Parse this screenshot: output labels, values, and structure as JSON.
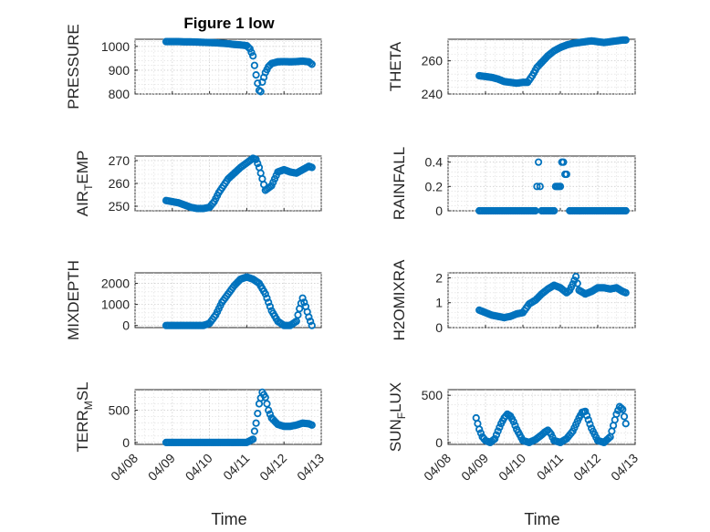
{
  "figure": {
    "title": "Figure 1 low",
    "xlabel": "Time"
  },
  "colors": {
    "marker": "#0072BD",
    "axes": "#262626",
    "background": "#ffffff"
  },
  "chart_data": [
    {
      "id": "pressure",
      "type": "scatter",
      "ylabel": "PRESSURE",
      "x_range": [
        "04/08",
        "04/13"
      ],
      "xticks": [
        "04/08",
        "04/09",
        "04/10",
        "04/11",
        "04/12",
        "04/13"
      ],
      "show_xtick_labels": false,
      "ylim": [
        800,
        1030
      ],
      "yticks": [
        800,
        900,
        1000
      ],
      "grid": true,
      "minor_grid": true,
      "x": [
        "04/08 20:00",
        "04/09 00:00",
        "04/09 04:00",
        "04/09 08:00",
        "04/09 12:00",
        "04/09 16:00",
        "04/09 20:00",
        "04/10 00:00",
        "04/10 04:00",
        "04/10 08:00",
        "04/10 12:00",
        "04/10 16:00",
        "04/10 20:00",
        "04/11 00:00",
        "04/11 02:00",
        "04/11 04:00",
        "04/11 05:00",
        "04/11 06:00",
        "04/11 07:00",
        "04/11 08:00",
        "04/11 09:00",
        "04/11 10:00",
        "04/11 12:00",
        "04/11 14:00",
        "04/11 16:00",
        "04/11 20:00",
        "04/12 00:00",
        "04/12 04:00",
        "04/12 08:00",
        "04/12 12:00",
        "04/12 16:00",
        "04/12 18:00"
      ],
      "y": [
        1020,
        1020,
        1020,
        1019,
        1019,
        1018,
        1017,
        1016,
        1015,
        1013,
        1011,
        1008,
        1006,
        1003,
        990,
        960,
        920,
        880,
        845,
        815,
        810,
        850,
        890,
        915,
        928,
        935,
        936,
        935,
        936,
        938,
        935,
        925
      ]
    },
    {
      "id": "theta",
      "type": "scatter",
      "ylabel": "THETA",
      "x_range": [
        "04/08",
        "04/13"
      ],
      "xticks": [
        "04/08",
        "04/09",
        "04/10",
        "04/11",
        "04/12",
        "04/13"
      ],
      "show_xtick_labels": false,
      "ylim": [
        240,
        273
      ],
      "yticks": [
        240,
        260
      ],
      "grid": true,
      "minor_grid": true,
      "x": [
        "04/08 20:00",
        "04/09 00:00",
        "04/09 04:00",
        "04/09 08:00",
        "04/09 12:00",
        "04/09 16:00",
        "04/09 20:00",
        "04/10 00:00",
        "04/10 03:00",
        "04/10 06:00",
        "04/10 09:00",
        "04/10 12:00",
        "04/10 16:00",
        "04/10 20:00",
        "04/11 00:00",
        "04/11 04:00",
        "04/11 08:00",
        "04/11 12:00",
        "04/11 16:00",
        "04/11 20:00",
        "04/12 00:00",
        "04/12 04:00",
        "04/12 08:00",
        "04/12 12:00",
        "04/12 16:00",
        "04/12 18:00"
      ],
      "y": [
        251,
        250.5,
        250,
        249,
        247.5,
        247,
        246.5,
        247,
        247,
        251,
        256,
        259,
        263,
        266,
        268,
        269.5,
        270.5,
        271,
        271.5,
        272,
        271.5,
        271,
        271.5,
        272,
        272.5,
        272.5
      ]
    },
    {
      "id": "air_temp",
      "type": "scatter",
      "ylabel": "AIR_TEMP",
      "x_range": [
        "04/08",
        "04/13"
      ],
      "xticks": [
        "04/08",
        "04/09",
        "04/10",
        "04/11",
        "04/12",
        "04/13"
      ],
      "show_xtick_labels": false,
      "ylim": [
        248,
        272
      ],
      "yticks": [
        250,
        260,
        270
      ],
      "grid": true,
      "minor_grid": true,
      "x": [
        "04/08 20:00",
        "04/09 00:00",
        "04/09 04:00",
        "04/09 08:00",
        "04/09 12:00",
        "04/09 16:00",
        "04/09 20:00",
        "04/10 00:00",
        "04/10 03:00",
        "04/10 06:00",
        "04/10 09:00",
        "04/10 12:00",
        "04/10 16:00",
        "04/10 20:00",
        "04/11 00:00",
        "04/11 04:00",
        "04/11 06:00",
        "04/11 08:00",
        "04/11 10:00",
        "04/11 12:00",
        "04/11 16:00",
        "04/11 20:00",
        "04/12 00:00",
        "04/12 04:00",
        "04/12 08:00",
        "04/12 12:00",
        "04/12 16:00",
        "04/12 18:00"
      ],
      "y": [
        252.5,
        252,
        251.5,
        250.5,
        249.5,
        249,
        249,
        249.5,
        252,
        256,
        259,
        262,
        264.5,
        267,
        269,
        271,
        270.5,
        267,
        262,
        257,
        259,
        265,
        266,
        265,
        264.5,
        266,
        267.5,
        267
      ]
    },
    {
      "id": "rainfall",
      "type": "scatter",
      "ylabel": "RAINFALL",
      "x_range": [
        "04/08",
        "04/13"
      ],
      "xticks": [
        "04/08",
        "04/09",
        "04/10",
        "04/11",
        "04/12",
        "04/13"
      ],
      "show_xtick_labels": false,
      "ylim": [
        0,
        0.45
      ],
      "yticks": [
        0,
        0.2,
        0.4
      ],
      "grid": true,
      "minor_grid": true,
      "x": [
        "04/08 20:00",
        "04/09 00:00",
        "04/09 04:00",
        "04/09 08:00",
        "04/09 12:00",
        "04/09 16:00",
        "04/09 20:00",
        "04/10 00:00",
        "04/10 04:00",
        "04/10 08:00",
        "04/10 09:00",
        "04/10 10:00",
        "04/10 11:00",
        "04/10 12:00",
        "04/10 16:00",
        "04/10 20:00",
        "04/10 21:00",
        "04/10 22:00",
        "04/10 23:00",
        "04/11 00:00",
        "04/11 01:00",
        "04/11 02:00",
        "04/11 03:00",
        "04/11 04:00",
        "04/11 06:00",
        "04/11 08:00",
        "04/11 12:00",
        "04/11 16:00",
        "04/11 20:00",
        "04/12 00:00",
        "04/12 04:00",
        "04/12 08:00",
        "04/12 12:00",
        "04/12 16:00",
        "04/12 18:00"
      ],
      "y": [
        0,
        0,
        0,
        0,
        0,
        0,
        0,
        0,
        0,
        0,
        0.2,
        0.4,
        0.2,
        0,
        0,
        0,
        0.2,
        0.2,
        0.2,
        0.2,
        0.4,
        0.4,
        0.3,
        0.3,
        0,
        0,
        0,
        0,
        0,
        0,
        0,
        0,
        0,
        0,
        0
      ]
    },
    {
      "id": "mixdepth",
      "type": "scatter",
      "ylabel": "MIXDEPTH",
      "x_range": [
        "04/08",
        "04/13"
      ],
      "xticks": [
        "04/08",
        "04/09",
        "04/10",
        "04/11",
        "04/12",
        "04/13"
      ],
      "show_xtick_labels": false,
      "ylim": [
        -100,
        2500
      ],
      "yticks": [
        0,
        1000,
        2000
      ],
      "grid": true,
      "minor_grid": true,
      "x": [
        "04/08 20:00",
        "04/09 00:00",
        "04/09 04:00",
        "04/09 08:00",
        "04/09 12:00",
        "04/09 16:00",
        "04/09 20:00",
        "04/10 00:00",
        "04/10 04:00",
        "04/10 08:00",
        "04/10 12:00",
        "04/10 16:00",
        "04/10 20:00",
        "04/11 00:00",
        "04/11 04:00",
        "04/11 08:00",
        "04/11 12:00",
        "04/11 16:00",
        "04/11 20:00",
        "04/12 00:00",
        "04/12 04:00",
        "04/12 08:00",
        "04/12 10:00",
        "04/12 12:00",
        "04/12 14:00",
        "04/12 16:00",
        "04/12 18:00"
      ],
      "y": [
        0,
        0,
        0,
        0,
        0,
        0,
        0,
        100,
        500,
        1100,
        1500,
        1900,
        2200,
        2300,
        2200,
        2000,
        1500,
        700,
        200,
        0,
        0,
        200,
        800,
        1300,
        900,
        400,
        0
      ]
    },
    {
      "id": "h2omixra",
      "type": "scatter",
      "ylabel": "H2OMIXRA",
      "x_range": [
        "04/08",
        "04/13"
      ],
      "xticks": [
        "04/08",
        "04/09",
        "04/10",
        "04/11",
        "04/12",
        "04/13"
      ],
      "show_xtick_labels": false,
      "ylim": [
        0,
        2.2
      ],
      "yticks": [
        0,
        1,
        2
      ],
      "grid": true,
      "minor_grid": true,
      "x": [
        "04/08 20:00",
        "04/09 00:00",
        "04/09 04:00",
        "04/09 08:00",
        "04/09 12:00",
        "04/09 16:00",
        "04/09 20:00",
        "04/10 00:00",
        "04/10 04:00",
        "04/10 08:00",
        "04/10 12:00",
        "04/10 16:00",
        "04/10 20:00",
        "04/11 00:00",
        "04/11 04:00",
        "04/11 06:00",
        "04/11 08:00",
        "04/11 10:00",
        "04/11 12:00",
        "04/11 16:00",
        "04/11 20:00",
        "04/12 00:00",
        "04/12 04:00",
        "04/12 08:00",
        "04/12 12:00",
        "04/12 16:00",
        "04/12 18:00"
      ],
      "y": [
        0.7,
        0.6,
        0.5,
        0.45,
        0.4,
        0.45,
        0.55,
        0.6,
        0.95,
        1.1,
        1.35,
        1.55,
        1.7,
        1.6,
        1.4,
        1.5,
        1.75,
        2.05,
        1.5,
        1.35,
        1.45,
        1.6,
        1.6,
        1.55,
        1.6,
        1.45,
        1.4
      ]
    },
    {
      "id": "terr_msl",
      "type": "scatter",
      "ylabel": "TERR_MSL",
      "x_range": [
        "04/08",
        "04/13"
      ],
      "xticks": [
        "04/08",
        "04/09",
        "04/10",
        "04/11",
        "04/12",
        "04/13"
      ],
      "show_xtick_labels": true,
      "ylim": [
        -30,
        820
      ],
      "yticks": [
        0,
        500
      ],
      "grid": true,
      "minor_grid": true,
      "x": [
        "04/08 20:00",
        "04/09 00:00",
        "04/09 04:00",
        "04/09 08:00",
        "04/09 12:00",
        "04/09 16:00",
        "04/09 20:00",
        "04/10 00:00",
        "04/10 04:00",
        "04/10 08:00",
        "04/10 12:00",
        "04/10 16:00",
        "04/10 20:00",
        "04/11 00:00",
        "04/11 04:00",
        "04/11 06:00",
        "04/11 08:00",
        "04/11 10:00",
        "04/11 12:00",
        "04/11 14:00",
        "04/11 16:00",
        "04/11 20:00",
        "04/12 00:00",
        "04/12 04:00",
        "04/12 08:00",
        "04/12 12:00",
        "04/12 16:00",
        "04/12 18:00"
      ],
      "y": [
        0,
        0,
        0,
        0,
        0,
        0,
        0,
        0,
        0,
        0,
        0,
        0,
        0,
        0,
        50,
        300,
        600,
        780,
        700,
        500,
        380,
        280,
        250,
        250,
        270,
        300,
        290,
        270
      ]
    },
    {
      "id": "sun_flux",
      "type": "scatter",
      "ylabel": "SUN_FLUX",
      "x_range": [
        "04/08",
        "04/13"
      ],
      "xticks": [
        "04/08",
        "04/09",
        "04/10",
        "04/11",
        "04/12",
        "04/13"
      ],
      "show_xtick_labels": true,
      "ylim": [
        -20,
        560
      ],
      "yticks": [
        0,
        500
      ],
      "grid": true,
      "minor_grid": true,
      "x": [
        "04/08 18:00",
        "04/08 20:00",
        "04/08 22:00",
        "04/09 00:00",
        "04/09 03:00",
        "04/09 06:00",
        "04/09 08:00",
        "04/09 10:00",
        "04/09 12:00",
        "04/09 14:00",
        "04/09 16:00",
        "04/09 18:00",
        "04/09 20:00",
        "04/10 00:00",
        "04/10 04:00",
        "04/10 08:00",
        "04/10 12:00",
        "04/10 14:00",
        "04/10 16:00",
        "04/10 18:00",
        "04/10 20:00",
        "04/11 00:00",
        "04/11 04:00",
        "04/11 08:00",
        "04/11 12:00",
        "04/11 14:00",
        "04/11 16:00",
        "04/11 20:00",
        "04/12 00:00",
        "04/12 04:00",
        "04/12 08:00",
        "04/12 12:00",
        "04/12 14:00",
        "04/12 16:00",
        "04/12 18:00"
      ],
      "y": [
        260,
        140,
        60,
        20,
        0,
        40,
        120,
        200,
        260,
        300,
        280,
        220,
        140,
        20,
        0,
        30,
        80,
        110,
        130,
        90,
        20,
        0,
        40,
        120,
        260,
        320,
        330,
        150,
        20,
        0,
        60,
        300,
        380,
        350,
        200
      ]
    }
  ]
}
